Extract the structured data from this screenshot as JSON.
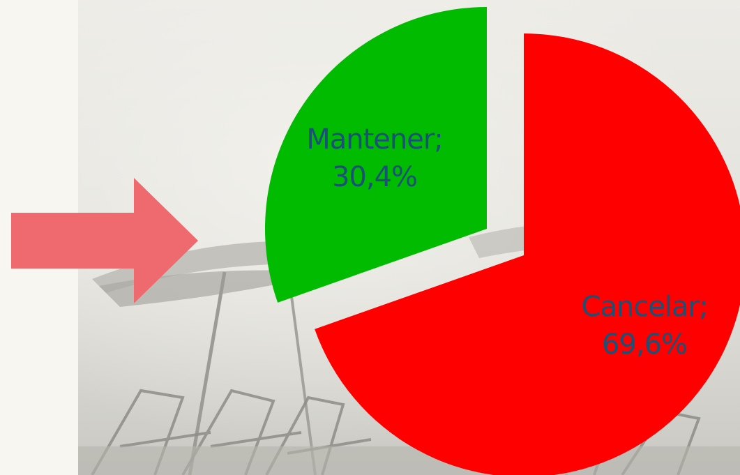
{
  "chart_data": {
    "type": "pie",
    "title": "",
    "exploded": true,
    "slices": [
      {
        "label": "Mantener",
        "value": 30.4,
        "display": "30,4%",
        "color": "#00bb00"
      },
      {
        "label": "Cancelar",
        "value": 69.6,
        "display": "69,6%",
        "color": "#ff0000"
      }
    ],
    "label_color": "#1a5276",
    "label_separator": ";"
  },
  "decor": {
    "arrow_color": "#ef6a6e",
    "background": "beach-umbrellas-photo"
  }
}
